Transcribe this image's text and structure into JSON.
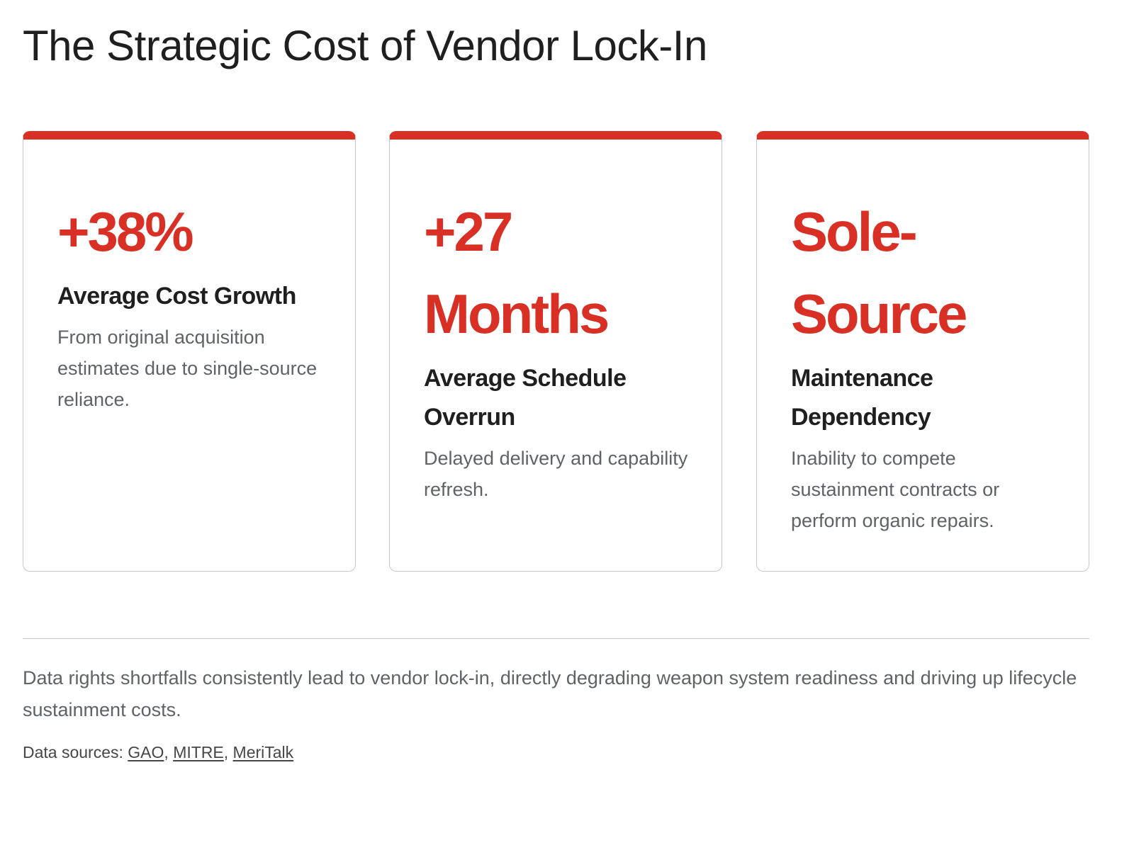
{
  "page": {
    "title": "The Strategic Cost of Vendor Lock-In"
  },
  "cards": [
    {
      "value": "+38%",
      "label": "Average Cost Growth",
      "description": "From original acquisition estimates due to single-source reliance."
    },
    {
      "value": "+27 Months",
      "label": "Average Schedule Overrun",
      "description": "Delayed delivery and capability refresh."
    },
    {
      "value": "Sole-Source",
      "label": "Maintenance Dependency",
      "description": "Inability to compete sustainment contracts or perform organic repairs."
    }
  ],
  "summary": "Data rights shortfalls consistently lead to vendor lock-in, directly degrading weapon system readiness and driving up lifecycle sustainment costs.",
  "sources": {
    "prefix": "Data sources: ",
    "links": [
      "GAO",
      "MITRE",
      "MeriTalk"
    ],
    "separator": ", "
  },
  "colors": {
    "accent": "#d93025",
    "text_primary": "#1f1f1f",
    "text_secondary": "#5f6368",
    "border": "#c8c8c8"
  }
}
